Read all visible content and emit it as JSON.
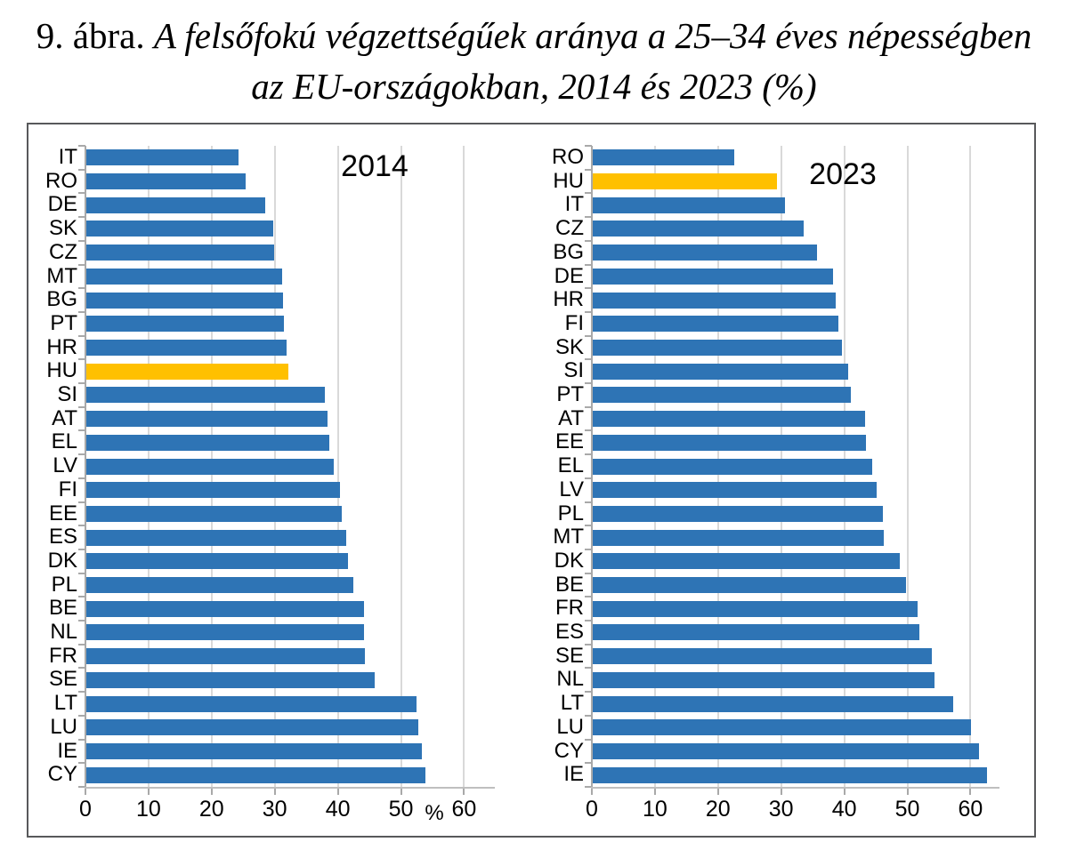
{
  "title": {
    "prefix": "9. ábra.",
    "line1_italic": "A felsőfokú végzettségűek aránya a 25–34 éves népességben",
    "line2_italic": "az EU-országokban, 2014 és 2023 (%)"
  },
  "colors": {
    "bar": "#2e74b5",
    "highlight_bar": "#ffc000",
    "gridline": "#d9d9d9",
    "axis": "#a9a9a9",
    "frame_border": "#58595b",
    "text": "#000000"
  },
  "chart_data": [
    {
      "type": "bar",
      "orientation": "horizontal",
      "title": "2014",
      "unit_label": "%",
      "highlight_category": "HU",
      "xlim": [
        0,
        64
      ],
      "xticks": [
        0,
        10,
        20,
        30,
        40,
        50,
        60
      ],
      "grid": true,
      "categories": [
        "IT",
        "RO",
        "DE",
        "SK",
        "CZ",
        "MT",
        "BG",
        "PT",
        "HR",
        "HU",
        "SI",
        "AT",
        "EL",
        "LV",
        "FI",
        "EE",
        "ES",
        "DK",
        "PL",
        "BE",
        "NL",
        "FR",
        "SE",
        "LT",
        "LU",
        "IE",
        "CY"
      ],
      "values": [
        24.3,
        25.4,
        28.5,
        29.7,
        29.9,
        31.2,
        31.3,
        31.4,
        31.9,
        32.2,
        37.9,
        38.4,
        38.6,
        39.4,
        40.3,
        40.6,
        41.3,
        41.6,
        42.5,
        44.1,
        44.2,
        44.3,
        45.9,
        52.5,
        52.8,
        53.3,
        53.9
      ]
    },
    {
      "type": "bar",
      "orientation": "horizontal",
      "title": "2023",
      "unit_label": "",
      "highlight_category": "HU",
      "xlim": [
        0,
        64
      ],
      "xticks": [
        0,
        10,
        20,
        30,
        40,
        50,
        60
      ],
      "grid": true,
      "categories": [
        "RO",
        "HU",
        "IT",
        "CZ",
        "BG",
        "DE",
        "HR",
        "FI",
        "SK",
        "SI",
        "PT",
        "AT",
        "EE",
        "EL",
        "LV",
        "PL",
        "MT",
        "DK",
        "BE",
        "FR",
        "ES",
        "SE",
        "NL",
        "LT",
        "LU",
        "CY",
        "IE"
      ],
      "values": [
        22.6,
        29.3,
        30.6,
        33.5,
        35.7,
        38.2,
        38.6,
        39.1,
        39.6,
        40.6,
        41.0,
        43.3,
        43.4,
        44.4,
        45.1,
        46.1,
        46.2,
        48.8,
        49.8,
        51.6,
        51.9,
        53.9,
        54.3,
        57.2,
        60.1,
        61.4,
        62.6
      ]
    }
  ]
}
